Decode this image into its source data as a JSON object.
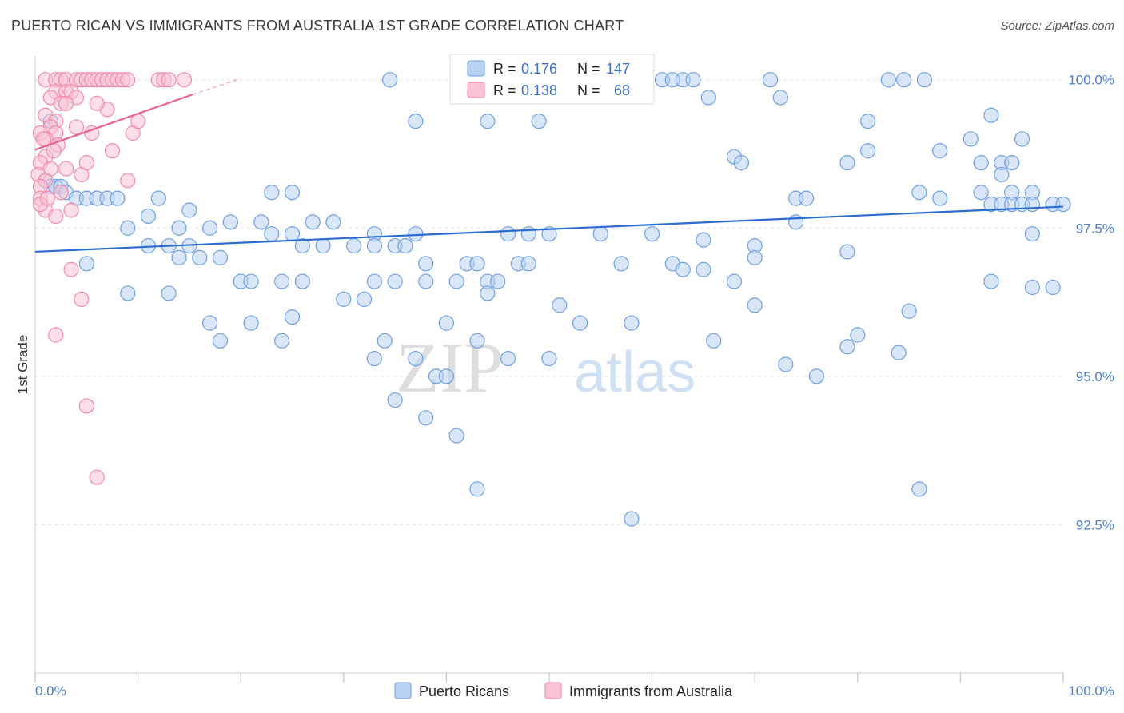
{
  "title": "PUERTO RICAN VS IMMIGRANTS FROM AUSTRALIA 1ST GRADE CORRELATION CHART",
  "source": "Source: ZipAtlas.com",
  "watermark": {
    "zip": "ZIP",
    "atlas": "atlas"
  },
  "legend": {
    "r_label": "R =",
    "n_label": "N =",
    "series1": {
      "r": "0.176",
      "n": "147"
    },
    "series2": {
      "r": "0.138",
      "n": "68"
    }
  },
  "chart_data": {
    "type": "scatter",
    "title": "PUERTO RICAN VS IMMIGRANTS FROM AUSTRALIA 1ST GRADE CORRELATION CHART",
    "xlabel": "",
    "ylabel": "1st Grade",
    "xlim": [
      0,
      100
    ],
    "ylim": [
      90.0,
      100.4
    ],
    "x_tick_labels": [
      "0.0%",
      "100.0%"
    ],
    "y_ticks": [
      92.5,
      95.0,
      97.5,
      100.0
    ],
    "y_tick_labels": [
      "92.5%",
      "95.0%",
      "97.5%",
      "100.0%"
    ],
    "grid": true,
    "legend_position": "top-center",
    "series": [
      {
        "name": "Puerto Ricans",
        "color": "#6f9fe0",
        "fill": "#b9d2f3",
        "line_color": "#2a6cd0",
        "trend": {
          "x": [
            0,
            100
          ],
          "y": [
            97.1,
            97.86
          ]
        },
        "points": [
          [
            34.5,
            100
          ],
          [
            48,
            100
          ],
          [
            52,
            100
          ],
          [
            53,
            100
          ],
          [
            59,
            100
          ],
          [
            61,
            100
          ],
          [
            62,
            100
          ],
          [
            63,
            100
          ],
          [
            64,
            100
          ],
          [
            71.5,
            100
          ],
          [
            83,
            100
          ],
          [
            84.5,
            100
          ],
          [
            86.5,
            100
          ],
          [
            52,
            99.8
          ],
          [
            65.5,
            99.7
          ],
          [
            72.5,
            99.7
          ],
          [
            93,
            99.4
          ],
          [
            1.5,
            99.3
          ],
          [
            37,
            99.3
          ],
          [
            44,
            99.3
          ],
          [
            49,
            99.3
          ],
          [
            81,
            99.3
          ],
          [
            91,
            99.0
          ],
          [
            96,
            99.0
          ],
          [
            81,
            98.8
          ],
          [
            88,
            98.8
          ],
          [
            68,
            98.7
          ],
          [
            68.7,
            98.6
          ],
          [
            79,
            98.6
          ],
          [
            92,
            98.6
          ],
          [
            94,
            98.6
          ],
          [
            95,
            98.6
          ],
          [
            94,
            98.4
          ],
          [
            1,
            98.3
          ],
          [
            1.5,
            98.2
          ],
          [
            2,
            98.2
          ],
          [
            23,
            98.1
          ],
          [
            25,
            98.1
          ],
          [
            86,
            98.1
          ],
          [
            92,
            98.1
          ],
          [
            95,
            98.1
          ],
          [
            97,
            98.1
          ],
          [
            2.5,
            98.2
          ],
          [
            3,
            98.1
          ],
          [
            4,
            98.0
          ],
          [
            5,
            98.0
          ],
          [
            6,
            98.0
          ],
          [
            7,
            98.0
          ],
          [
            8,
            98.0
          ],
          [
            12,
            98.0
          ],
          [
            74,
            98.0
          ],
          [
            75,
            98.0
          ],
          [
            88,
            98.0
          ],
          [
            93,
            97.9
          ],
          [
            94,
            97.9
          ],
          [
            95,
            97.9
          ],
          [
            96,
            97.9
          ],
          [
            97,
            97.9
          ],
          [
            99,
            97.9
          ],
          [
            100,
            97.9
          ],
          [
            11,
            97.7
          ],
          [
            15,
            97.8
          ],
          [
            19,
            97.6
          ],
          [
            22,
            97.6
          ],
          [
            27,
            97.6
          ],
          [
            29,
            97.6
          ],
          [
            9,
            97.5
          ],
          [
            14,
            97.5
          ],
          [
            17,
            97.5
          ],
          [
            23,
            97.4
          ],
          [
            25,
            97.4
          ],
          [
            33,
            97.4
          ],
          [
            37,
            97.4
          ],
          [
            46,
            97.4
          ],
          [
            48,
            97.4
          ],
          [
            50,
            97.4
          ],
          [
            55,
            97.4
          ],
          [
            60,
            97.4
          ],
          [
            65,
            97.3
          ],
          [
            70,
            97.2
          ],
          [
            74,
            97.6
          ],
          [
            79,
            97.1
          ],
          [
            97,
            97.4
          ],
          [
            11,
            97.2
          ],
          [
            13,
            97.2
          ],
          [
            15,
            97.2
          ],
          [
            26,
            97.2
          ],
          [
            28,
            97.2
          ],
          [
            31,
            97.2
          ],
          [
            33,
            97.2
          ],
          [
            35,
            97.2
          ],
          [
            36,
            97.2
          ],
          [
            5,
            96.9
          ],
          [
            14,
            97.0
          ],
          [
            16,
            97.0
          ],
          [
            18,
            97.0
          ],
          [
            38,
            96.9
          ],
          [
            42,
            96.9
          ],
          [
            43,
            96.9
          ],
          [
            47,
            96.9
          ],
          [
            48,
            96.9
          ],
          [
            57,
            96.9
          ],
          [
            62,
            96.9
          ],
          [
            63,
            96.8
          ],
          [
            65,
            96.8
          ],
          [
            70,
            97.0
          ],
          [
            20,
            96.6
          ],
          [
            21,
            96.6
          ],
          [
            24,
            96.6
          ],
          [
            26,
            96.6
          ],
          [
            33,
            96.6
          ],
          [
            35,
            96.6
          ],
          [
            38,
            96.6
          ],
          [
            41,
            96.6
          ],
          [
            44,
            96.6
          ],
          [
            45,
            96.6
          ],
          [
            68,
            96.6
          ],
          [
            93,
            96.6
          ],
          [
            97,
            96.5
          ],
          [
            99,
            96.5
          ],
          [
            9,
            96.4
          ],
          [
            13,
            96.4
          ],
          [
            30,
            96.3
          ],
          [
            32,
            96.3
          ],
          [
            44,
            96.4
          ],
          [
            51,
            96.2
          ],
          [
            70,
            96.2
          ],
          [
            85,
            96.1
          ],
          [
            17,
            95.9
          ],
          [
            21,
            95.9
          ],
          [
            25,
            96.0
          ],
          [
            40,
            95.9
          ],
          [
            53,
            95.9
          ],
          [
            58,
            95.9
          ],
          [
            18,
            95.6
          ],
          [
            24,
            95.6
          ],
          [
            34,
            95.6
          ],
          [
            43,
            95.6
          ],
          [
            66,
            95.6
          ],
          [
            80,
            95.7
          ],
          [
            33,
            95.3
          ],
          [
            37,
            95.3
          ],
          [
            46,
            95.3
          ],
          [
            50,
            95.3
          ],
          [
            79,
            95.5
          ],
          [
            84,
            95.4
          ],
          [
            39,
            95.0
          ],
          [
            40,
            95.0
          ],
          [
            73,
            95.2
          ],
          [
            76,
            95.0
          ],
          [
            35,
            94.6
          ],
          [
            38,
            94.3
          ],
          [
            41,
            94.0
          ],
          [
            43,
            93.1
          ],
          [
            58,
            92.6
          ],
          [
            86,
            93.1
          ]
        ]
      },
      {
        "name": "Immigrants from Australia",
        "color": "#f08aa8",
        "fill": "#f9c3d3",
        "line_color": "#e8628e",
        "trend": {
          "x": [
            0,
            15.3
          ],
          "y": [
            98.82,
            99.75
          ]
        },
        "trend_dashed": {
          "x": [
            15.3,
            20
          ],
          "y": [
            99.75,
            100.02
          ]
        },
        "points": [
          [
            1,
            100
          ],
          [
            2,
            100
          ],
          [
            2.5,
            100
          ],
          [
            3,
            100
          ],
          [
            4,
            100
          ],
          [
            4.5,
            100
          ],
          [
            5,
            100
          ],
          [
            5.5,
            100
          ],
          [
            6,
            100
          ],
          [
            6.5,
            100
          ],
          [
            7,
            100
          ],
          [
            7.5,
            100
          ],
          [
            8,
            100
          ],
          [
            8.5,
            100
          ],
          [
            9,
            100
          ],
          [
            12,
            100
          ],
          [
            12.5,
            100
          ],
          [
            13,
            100
          ],
          [
            14.5,
            100
          ],
          [
            2,
            99.8
          ],
          [
            3,
            99.8
          ],
          [
            3.5,
            99.8
          ],
          [
            4,
            99.7
          ],
          [
            1.5,
            99.7
          ],
          [
            2.5,
            99.6
          ],
          [
            3,
            99.6
          ],
          [
            7,
            99.5
          ],
          [
            1,
            99.4
          ],
          [
            2,
            99.3
          ],
          [
            1.5,
            99.2
          ],
          [
            2,
            99.1
          ],
          [
            0.5,
            99.1
          ],
          [
            1,
            99.0
          ],
          [
            2.2,
            98.9
          ],
          [
            1,
            98.7
          ],
          [
            0.5,
            98.6
          ],
          [
            1.5,
            98.5
          ],
          [
            0.3,
            98.4
          ],
          [
            1,
            98.3
          ],
          [
            0.5,
            98.2
          ],
          [
            0.5,
            98.0
          ],
          [
            1,
            97.8
          ],
          [
            2,
            97.7
          ],
          [
            9,
            98.3
          ],
          [
            9.5,
            99.1
          ],
          [
            7.5,
            98.8
          ],
          [
            4,
            99.2
          ],
          [
            3,
            98.5
          ],
          [
            2.5,
            98.1
          ],
          [
            4.5,
            98.4
          ],
          [
            5,
            98.6
          ],
          [
            3.5,
            97.8
          ],
          [
            0.5,
            97.9
          ],
          [
            1.2,
            98.0
          ],
          [
            6,
            99.6
          ],
          [
            5.5,
            99.1
          ],
          [
            1.8,
            98.8
          ],
          [
            10,
            99.3
          ],
          [
            0.8,
            99.0
          ],
          [
            3.5,
            96.8
          ],
          [
            4.5,
            96.3
          ],
          [
            2,
            95.7
          ],
          [
            5,
            94.5
          ],
          [
            6,
            93.3
          ]
        ]
      }
    ]
  }
}
